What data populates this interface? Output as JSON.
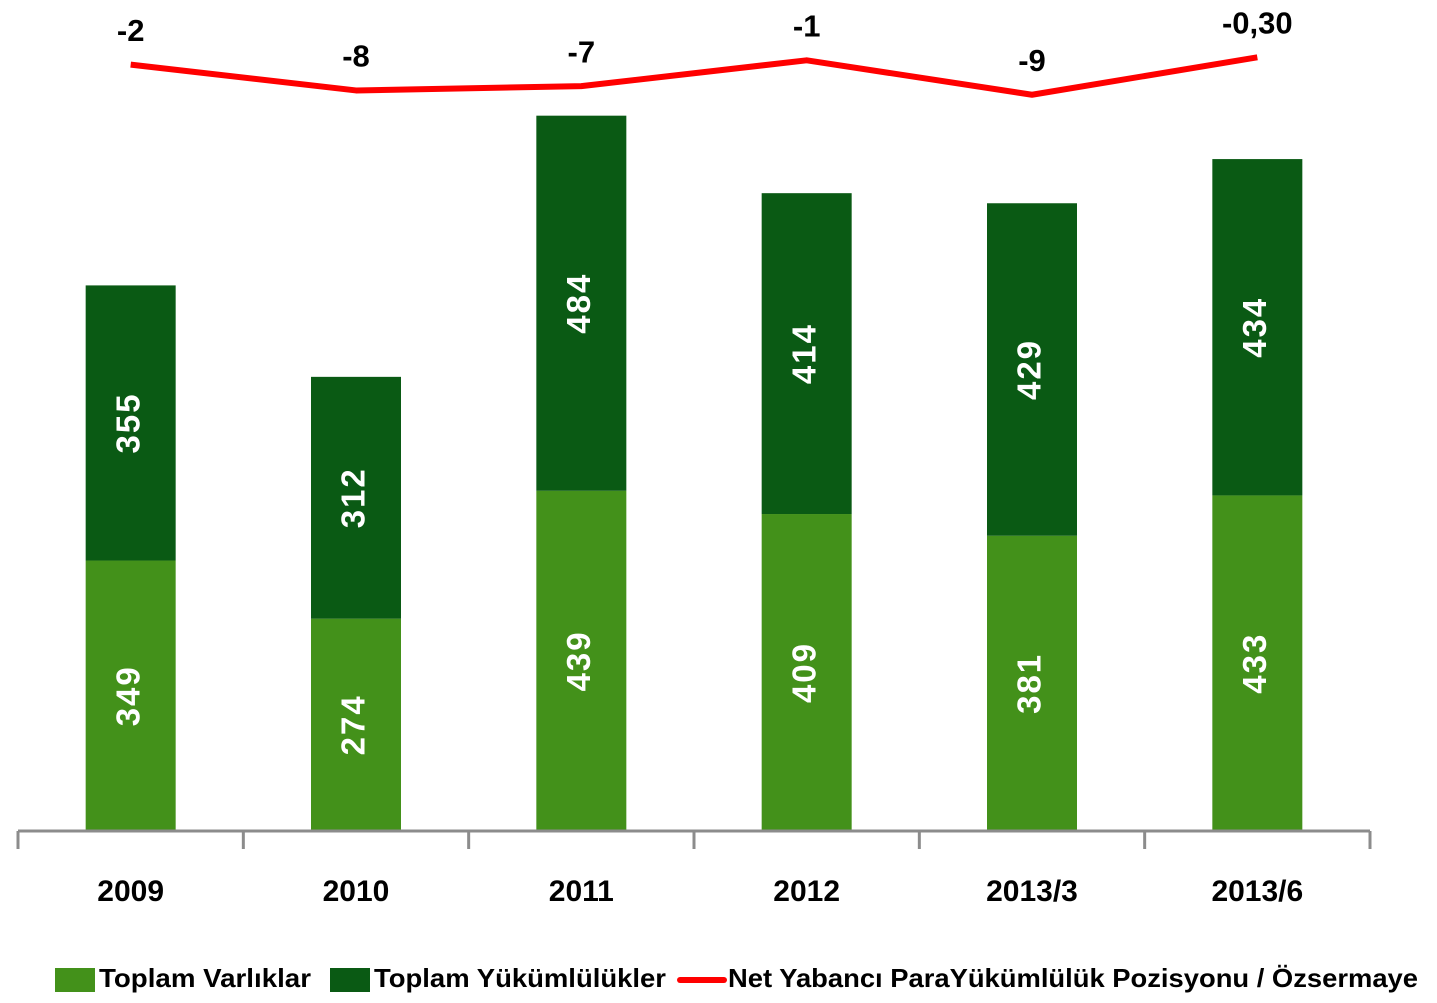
{
  "chart_data": {
    "type": "stacked-bar-line",
    "categories": [
      "2009",
      "2010",
      "2011",
      "2012",
      "2013/3",
      "2013/6"
    ],
    "series": [
      {
        "name": "Toplam Varlıklar",
        "color": "#43911a",
        "values": [
          349,
          274,
          439,
          409,
          381,
          433
        ]
      },
      {
        "name": "Toplam Yükümlülükler",
        "color": "#0a5a14",
        "values": [
          355,
          312,
          484,
          414,
          429,
          434
        ]
      },
      {
        "name": "Net Yabancı ParaYükümlülük Pozisyonu / Özsermaye",
        "color": "#ff0000",
        "axis": "y2",
        "values": [
          -2,
          -8,
          -7,
          -1,
          -9,
          -0.3
        ],
        "value_labels": [
          "-2",
          "-8",
          "-7",
          "-1",
          "-9",
          "-0,30"
        ]
      }
    ],
    "ylim": [
      0,
      1000
    ],
    "y2lim": [
      -180,
      0
    ],
    "grid": false,
    "legend": "bottom"
  }
}
